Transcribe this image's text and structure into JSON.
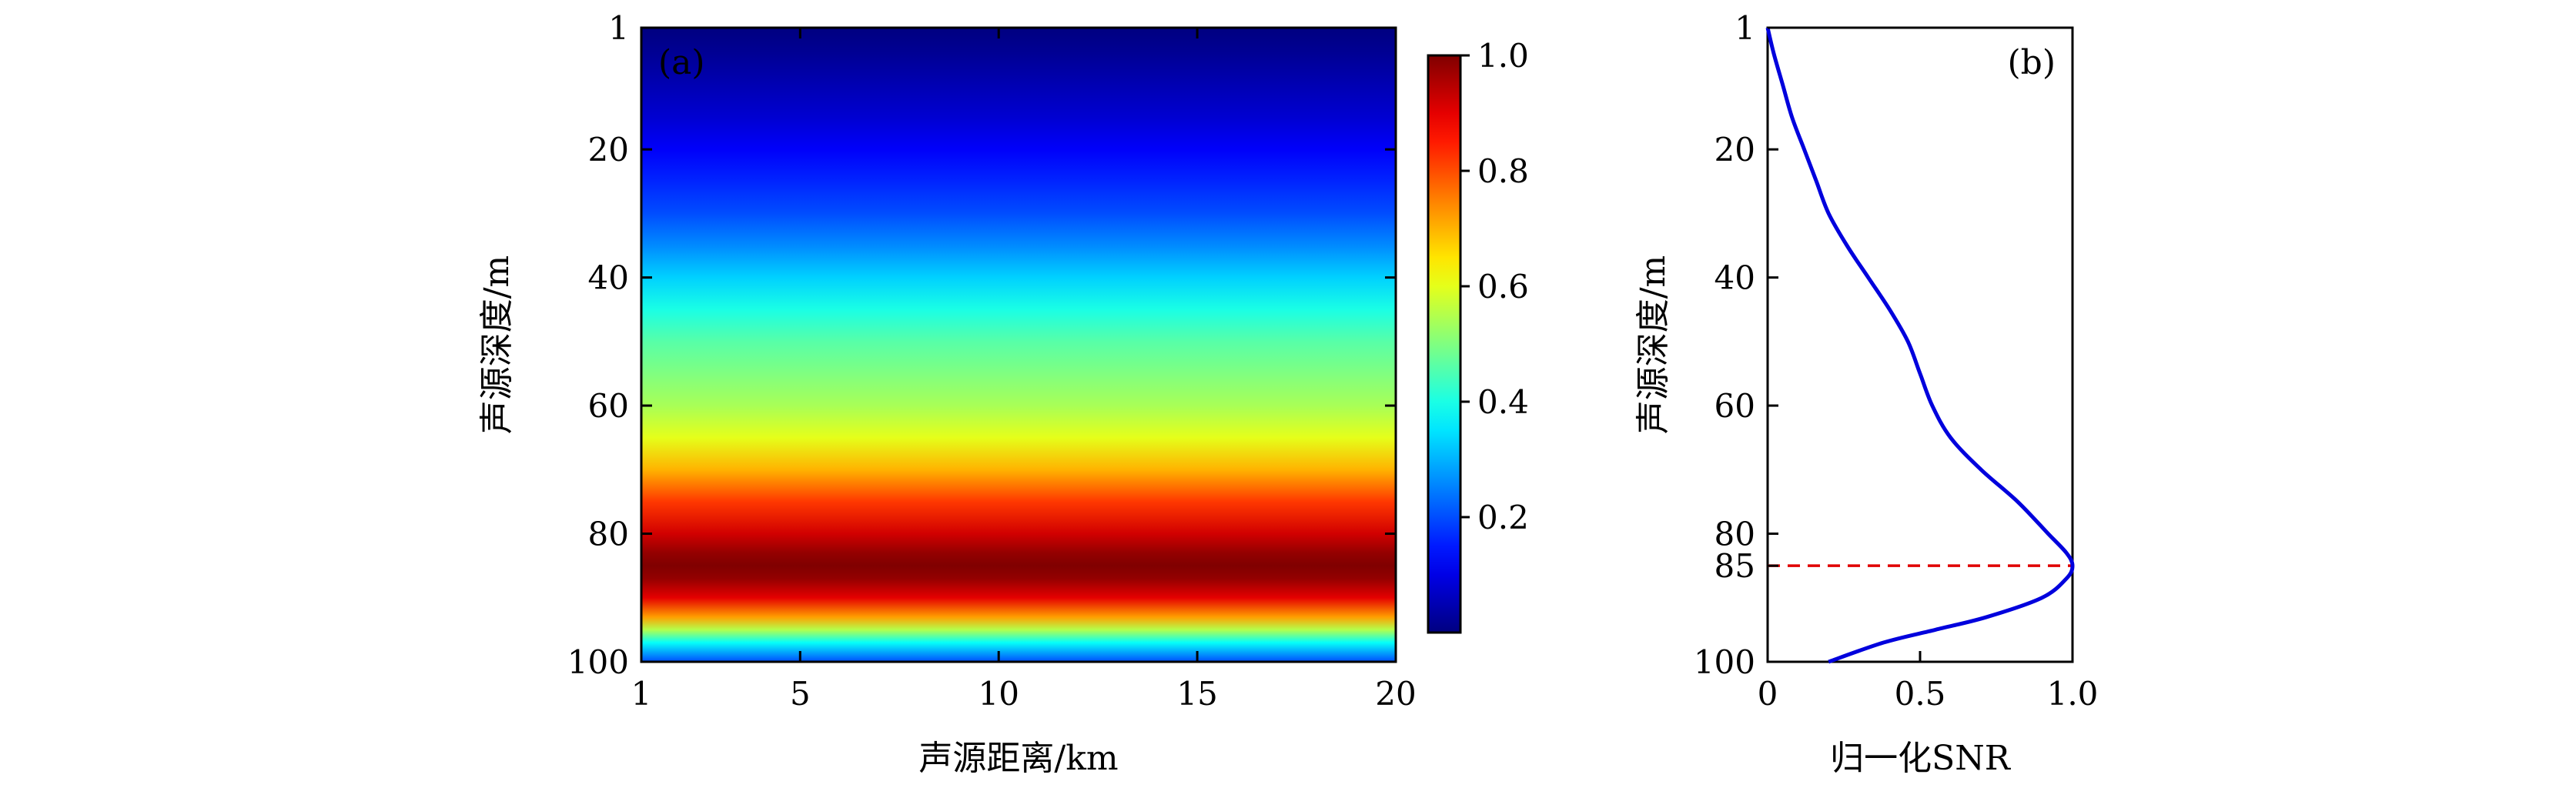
{
  "chart_data": [
    {
      "type": "heatmap",
      "panel_label": "(a)",
      "xlabel": "声源距离/km",
      "ylabel": "声源深度/m",
      "xlim": [
        1,
        20
      ],
      "ylim": [
        1,
        100
      ],
      "y_inverted": true,
      "xticks": [
        1,
        5,
        10,
        15,
        20
      ],
      "yticks": [
        1,
        20,
        40,
        60,
        80,
        100
      ],
      "colormap": "jet",
      "colorbar": {
        "range": [
          0,
          1.0
        ],
        "ticks": [
          "0.2",
          "0.4",
          "0.6",
          "0.8",
          "1.0"
        ]
      },
      "depth_profile": {
        "depth": [
          1,
          5,
          10,
          15,
          20,
          25,
          30,
          35,
          40,
          45,
          50,
          55,
          60,
          65,
          70,
          75,
          80,
          83,
          85,
          87,
          90,
          93,
          95,
          97,
          100
        ],
        "value": [
          0.0,
          0.02,
          0.05,
          0.08,
          0.12,
          0.16,
          0.2,
          0.26,
          0.33,
          0.4,
          0.46,
          0.5,
          0.54,
          0.6,
          0.7,
          0.82,
          0.92,
          0.98,
          1.0,
          0.98,
          0.9,
          0.72,
          0.55,
          0.38,
          0.2
        ]
      }
    },
    {
      "type": "line",
      "panel_label": "(b)",
      "xlabel": "归一化SNR",
      "ylabel": "声源深度/m",
      "xlim": [
        0,
        1.0
      ],
      "ylim": [
        1,
        100
      ],
      "y_inverted": true,
      "xticks": [
        "0",
        "0.5",
        "1.0"
      ],
      "yticks": [
        "1",
        "20",
        "40",
        "60",
        "80",
        "85",
        "100"
      ],
      "series": [
        {
          "color": "#0000dd",
          "x": [
            0.0,
            0.02,
            0.05,
            0.08,
            0.12,
            0.16,
            0.2,
            0.26,
            0.33,
            0.4,
            0.46,
            0.5,
            0.54,
            0.6,
            0.7,
            0.82,
            0.92,
            0.98,
            1.0,
            0.98,
            0.9,
            0.72,
            0.55,
            0.38,
            0.2
          ],
          "y": [
            1,
            5,
            10,
            15,
            20,
            25,
            30,
            35,
            40,
            45,
            50,
            55,
            60,
            65,
            70,
            75,
            80,
            83,
            85,
            87,
            90,
            93,
            95,
            97,
            100
          ]
        }
      ],
      "reference_line": {
        "y": 85,
        "color": "#e00000",
        "style": "dashed"
      }
    }
  ]
}
